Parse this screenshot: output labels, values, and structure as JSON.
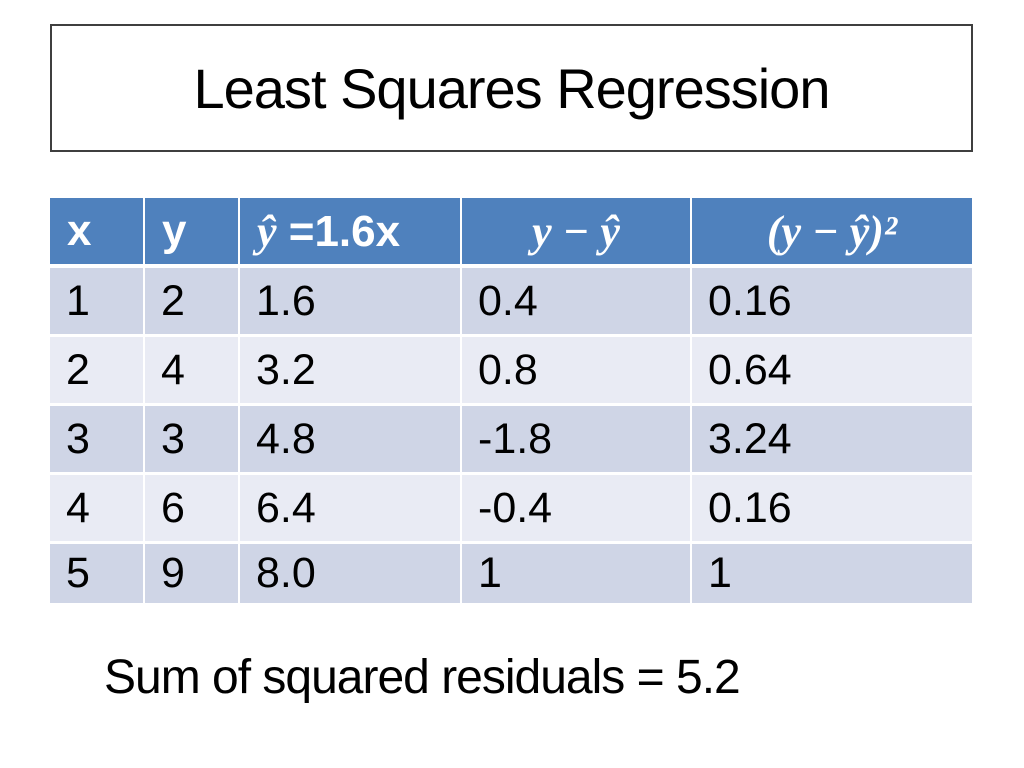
{
  "title": "Least Squares Regression",
  "table": {
    "headers": {
      "x": "x",
      "y": "y",
      "yhat_symbol": "ŷ",
      "yhat_rest": " =1.6x",
      "residual": "y − ŷ",
      "residual_sq": "(y − ŷ)²"
    },
    "rows": [
      [
        "1",
        "2",
        "1.6",
        "0.4",
        "0.16"
      ],
      [
        "2",
        "4",
        "3.2",
        "0.8",
        "0.64"
      ],
      [
        "3",
        "3",
        "4.8",
        "-1.8",
        "3.24"
      ],
      [
        "4",
        "6",
        "6.4",
        "-0.4",
        "0.16"
      ],
      [
        "5",
        "9",
        "8.0",
        "1",
        "1"
      ]
    ]
  },
  "caption": "Sum of squared residuals = 5.2",
  "colors": {
    "header_bg": "#4f81bd",
    "row_odd": "#cfd5e6",
    "row_even": "#e9ebf4",
    "header_text": "#ffffff",
    "body_text": "#000000",
    "title_border": "#3f3f3f"
  },
  "chart_data": {
    "type": "table",
    "title": "Least Squares Regression",
    "model": "ŷ = 1.6x",
    "columns": [
      "x",
      "y",
      "ŷ =1.6x",
      "y − ŷ",
      "(y − ŷ)²"
    ],
    "x": [
      1,
      2,
      3,
      4,
      5
    ],
    "y": [
      2,
      4,
      3,
      6,
      9
    ],
    "y_hat": [
      1.6,
      3.2,
      4.8,
      6.4,
      8.0
    ],
    "residuals": [
      0.4,
      0.8,
      -1.8,
      -0.4,
      1
    ],
    "squared_residuals": [
      0.16,
      0.64,
      3.24,
      0.16,
      1
    ],
    "sum_of_squared_residuals": 5.2
  }
}
